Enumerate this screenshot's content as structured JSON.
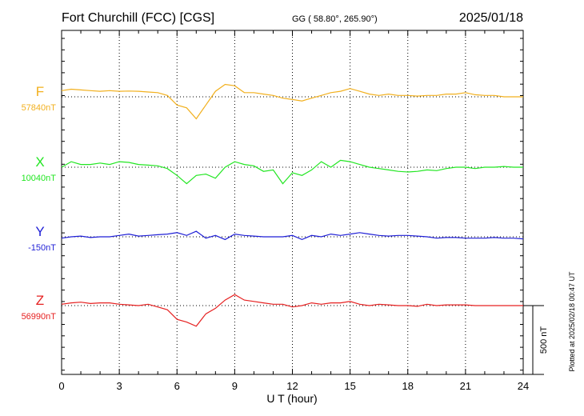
{
  "chart_data": {
    "type": "line",
    "title": "Fort Churchill (FCC)  [CGS]",
    "coordinates": "GG ( 58.80°, 265.90°)",
    "date": "2025/01/18",
    "xlabel": "U T (hour)",
    "xlim": [
      0,
      24
    ],
    "xticks": [
      0,
      3,
      6,
      9,
      12,
      15,
      18,
      21,
      24
    ],
    "grid": true,
    "scale_bar_label": "500 nT",
    "plotted_note": "Plotted at 2025/02/18 00:47 UT",
    "units": "nT",
    "x": [
      0,
      0.5,
      1,
      1.5,
      2,
      2.5,
      3,
      3.5,
      4,
      4.5,
      5,
      5.5,
      6,
      6.5,
      7,
      7.5,
      8,
      8.5,
      9,
      9.5,
      10,
      10.5,
      11,
      11.5,
      12,
      12.5,
      13,
      13.5,
      14,
      14.5,
      15,
      15.5,
      16,
      16.5,
      17,
      17.5,
      18,
      18.5,
      19,
      19.5,
      20,
      20.5,
      21,
      21.5,
      22,
      22.5,
      23,
      23.5,
      24
    ],
    "series": [
      {
        "name": "F",
        "baseline_label": "57840nT",
        "color": "#f2b01e",
        "values": [
          45,
          55,
          50,
          45,
          40,
          45,
          40,
          42,
          40,
          35,
          30,
          10,
          -60,
          -80,
          -160,
          -60,
          40,
          90,
          80,
          30,
          30,
          20,
          10,
          -10,
          -20,
          -30,
          -10,
          10,
          30,
          40,
          60,
          40,
          20,
          10,
          20,
          10,
          10,
          5,
          10,
          10,
          20,
          20,
          30,
          15,
          10,
          10,
          0,
          0,
          0
        ]
      },
      {
        "name": "X",
        "baseline_label": "10040nT",
        "color": "#22e622",
        "values": [
          0,
          40,
          20,
          20,
          30,
          20,
          40,
          35,
          20,
          15,
          10,
          -10,
          -60,
          -120,
          -60,
          -50,
          -80,
          0,
          40,
          20,
          10,
          -30,
          -20,
          -120,
          -40,
          -60,
          -20,
          40,
          0,
          50,
          40,
          20,
          0,
          -10,
          -20,
          -30,
          -35,
          -30,
          -20,
          -25,
          -10,
          0,
          0,
          -10,
          0,
          0,
          5,
          0,
          0
        ]
      },
      {
        "name": "Y",
        "baseline_label": "-150nT",
        "color": "#1f1fd6",
        "values": [
          -10,
          0,
          5,
          -5,
          0,
          0,
          10,
          20,
          5,
          10,
          15,
          20,
          30,
          10,
          40,
          -10,
          10,
          -20,
          20,
          10,
          5,
          0,
          0,
          0,
          10,
          -20,
          10,
          0,
          20,
          10,
          20,
          30,
          20,
          10,
          5,
          10,
          10,
          5,
          0,
          -10,
          -5,
          -5,
          -10,
          -10,
          -10,
          -5,
          -10,
          -10,
          -15
        ]
      },
      {
        "name": "Z",
        "baseline_label": "56990nT",
        "color": "#e62020",
        "values": [
          10,
          20,
          25,
          15,
          20,
          20,
          10,
          5,
          0,
          10,
          -10,
          -30,
          -100,
          -120,
          -150,
          -60,
          -20,
          40,
          80,
          40,
          30,
          20,
          10,
          10,
          -10,
          0,
          20,
          10,
          20,
          20,
          30,
          10,
          0,
          10,
          5,
          0,
          0,
          -5,
          10,
          0,
          5,
          5,
          5,
          0,
          0,
          0,
          0,
          0,
          0
        ]
      }
    ]
  }
}
